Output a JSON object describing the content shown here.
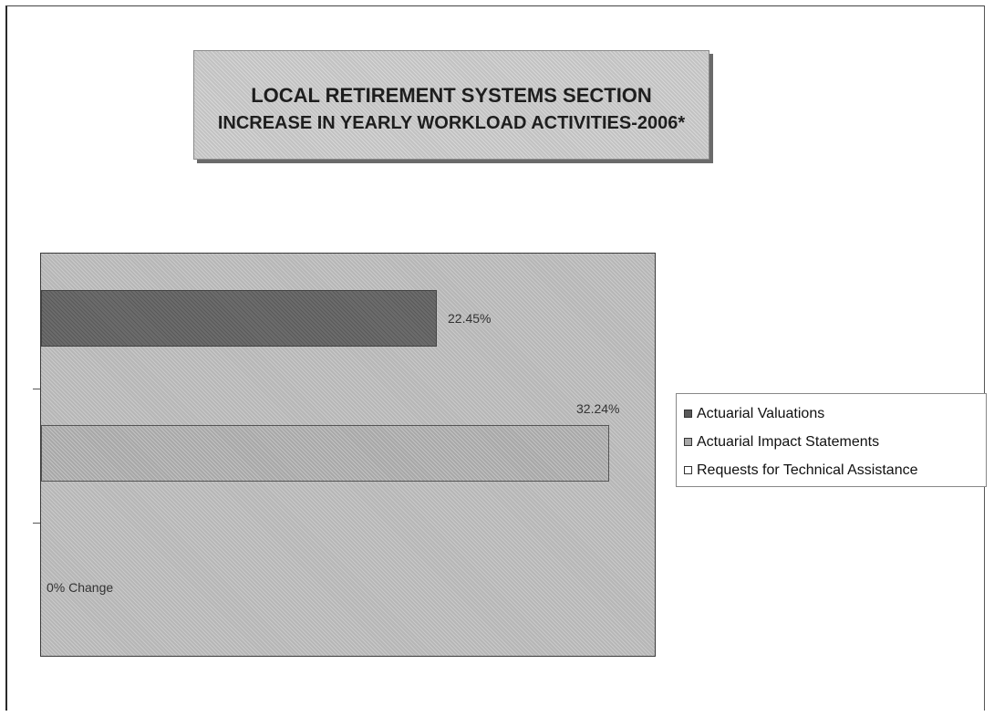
{
  "chart_data": {
    "type": "bar",
    "orientation": "horizontal",
    "title": "LOCAL RETIREMENT SYSTEMS SECTION",
    "subtitle": "INCREASE IN YEARLY WORKLOAD ACTIVITIES-2006*",
    "xlim": [
      0,
      34
    ],
    "grid": false,
    "legend_position": "right",
    "series": [
      {
        "name": "Actuarial Valuations",
        "value": 22.45,
        "label": "22.45%",
        "color": "#6c6c6c"
      },
      {
        "name": "Actuarial Impact Statements",
        "value": 32.24,
        "label": "32.24%",
        "color": "#a8a8a8"
      },
      {
        "name": "Requests for Technical Assistance",
        "value": 0,
        "label": "0% Change",
        "color": "#ffffff"
      }
    ]
  }
}
